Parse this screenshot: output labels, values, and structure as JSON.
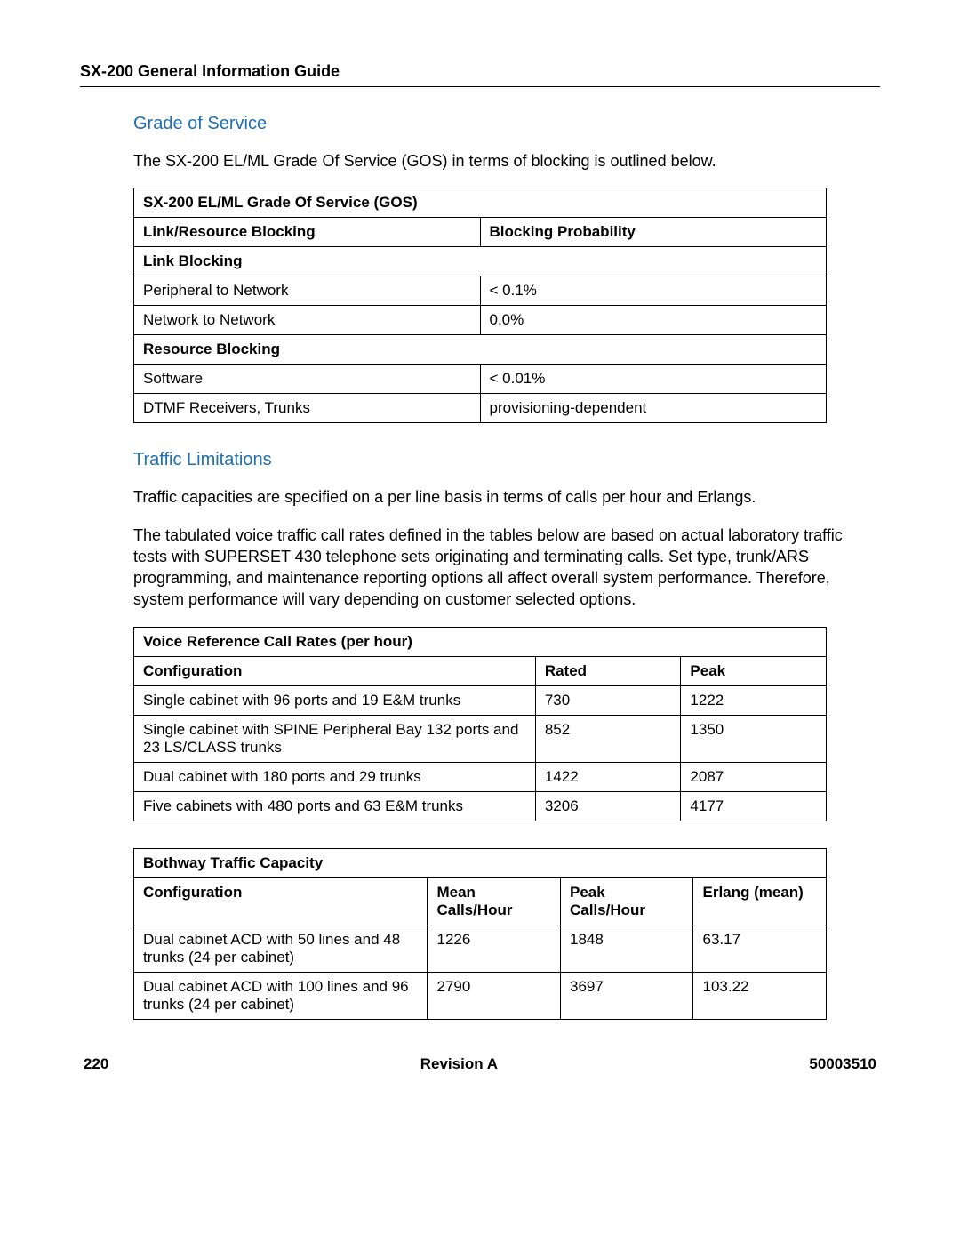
{
  "header": {
    "title": "SX-200 General Information Guide"
  },
  "section1": {
    "heading": "Grade of Service",
    "intro": "The SX-200 EL/ML Grade Of Service (GOS) in terms of blocking is outlined below.",
    "table": {
      "title": "SX-200 EL/ML Grade Of Service (GOS)",
      "col1": "Link/Resource Blocking",
      "col2": "Blocking Probability",
      "group1": "Link Blocking",
      "r1c1": "Peripheral to Network",
      "r1c2": "< 0.1%",
      "r2c1": "Network to Network",
      "r2c2": "0.0%",
      "group2": "Resource Blocking",
      "r3c1": "Software",
      "r3c2": "< 0.01%",
      "r4c1": "DTMF Receivers, Trunks",
      "r4c2": "provisioning-dependent"
    }
  },
  "section2": {
    "heading": "Traffic Limitations",
    "p1": "Traffic capacities are specified on a per line basis in terms of calls per hour and Erlangs.",
    "p2": "The tabulated voice traffic call rates defined in the tables below are based on actual laboratory traffic tests with SUPERSET 430 telephone sets originating and terminating calls. Set type, trunk/ARS programming, and maintenance reporting options all affect overall system performance. Therefore, system performance will vary depending on customer selected options.",
    "table2": {
      "title": "Voice Reference Call Rates (per hour)",
      "c1": "Configuration",
      "c2": "Rated",
      "c3": "Peak",
      "rows": [
        {
          "cfg": "Single cabinet with 96 ports and 19 E&M trunks",
          "rated": "730",
          "peak": "1222"
        },
        {
          "cfg": "Single cabinet with SPINE Peripheral Bay 132 ports and 23 LS/CLASS trunks",
          "rated": "852",
          "peak": "1350"
        },
        {
          "cfg": "Dual cabinet with 180 ports and 29 trunks",
          "rated": "1422",
          "peak": "2087"
        },
        {
          "cfg": "Five cabinets with 480 ports and 63 E&M trunks",
          "rated": "3206",
          "peak": "4177"
        }
      ]
    },
    "table3": {
      "title": "Bothway Traffic Capacity",
      "c1": "Configuration",
      "c2": "Mean Calls/Hour",
      "c3": "Peak Calls/Hour",
      "c4": "Erlang (mean)",
      "rows": [
        {
          "cfg": "Dual cabinet ACD with 50 lines and 48 trunks (24 per cabinet)",
          "mean": "1226",
          "peak": "1848",
          "erl": "63.17"
        },
        {
          "cfg": "Dual cabinet ACD with 100 lines and 96 trunks (24 per cabinet)",
          "mean": "2790",
          "peak": "3697",
          "erl": "103.22"
        }
      ]
    }
  },
  "footer": {
    "page": "220",
    "rev": "Revision A",
    "docnum": "50003510"
  }
}
